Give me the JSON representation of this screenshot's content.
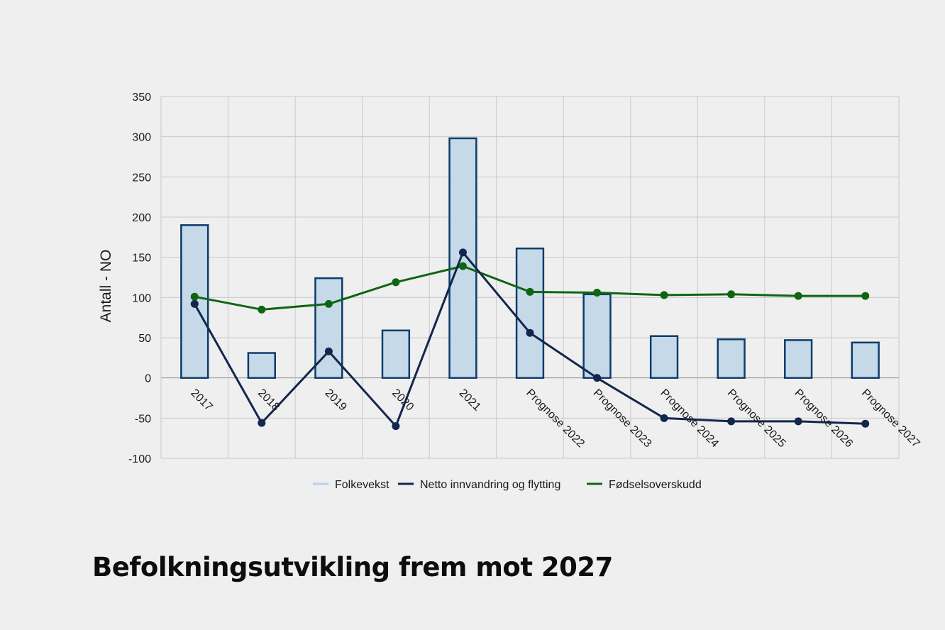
{
  "chart_data": {
    "type": "bar",
    "categories": [
      "2017",
      "2018",
      "2019",
      "2020",
      "2021",
      "Prognose 2022",
      "Prognose 2023",
      "Prognose 2024",
      "Prognose 2025",
      "Prognose 2026",
      "Prognose 2027"
    ],
    "series": [
      {
        "name": "Folkevekst",
        "type": "bar",
        "color": "#c5d9e8",
        "stroke": "#0e3c6b",
        "values": [
          190,
          31,
          124,
          59,
          298,
          161,
          104,
          52,
          48,
          47,
          44
        ]
      },
      {
        "name": "Netto innvandring og flytting",
        "type": "line",
        "color": "#13264d",
        "values": [
          92,
          -56,
          33,
          -60,
          156,
          56,
          0,
          -50,
          -54,
          -54,
          -57
        ]
      },
      {
        "name": "Fødselsoverskudd",
        "type": "line",
        "color": "#0f6612",
        "values": [
          101,
          85,
          92,
          119,
          139,
          107,
          106,
          103,
          104,
          102,
          102
        ]
      }
    ],
    "ylabel": "Antall - NO",
    "ylim": [
      -100,
      350
    ],
    "yticks": [
      350,
      300,
      250,
      200,
      150,
      100,
      50,
      0,
      -50,
      -100
    ],
    "grid": true,
    "legend_position": "bottom"
  },
  "caption": "Befolkningsutvikling frem mot 2027"
}
